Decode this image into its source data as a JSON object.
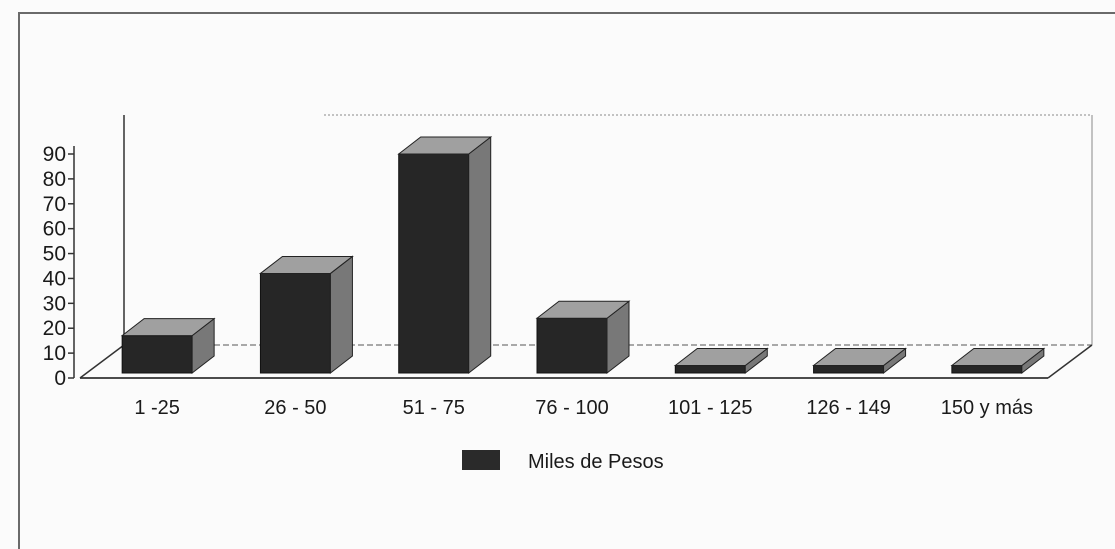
{
  "chart_data": {
    "type": "bar",
    "categories": [
      "1 -25",
      "26 - 50",
      "51 - 75",
      "76 - 100",
      "101 - 125",
      "126 - 149",
      "150 y más"
    ],
    "series": [
      {
        "name": "Miles de Pesos",
        "values": [
          15,
          40,
          88,
          22,
          3,
          3,
          3
        ]
      }
    ],
    "y_ticks": [
      "0",
      "10",
      "20",
      "30",
      "40",
      "50",
      "60",
      "70",
      "80",
      "90"
    ],
    "ylim": [
      0,
      90
    ],
    "legend_position": "bottom",
    "grid": false,
    "three_d": true,
    "colors": {
      "bar_front": "#262626",
      "bar_top": "#a0a0a0",
      "bar_side": "#787878",
      "axis": "#333333"
    }
  }
}
